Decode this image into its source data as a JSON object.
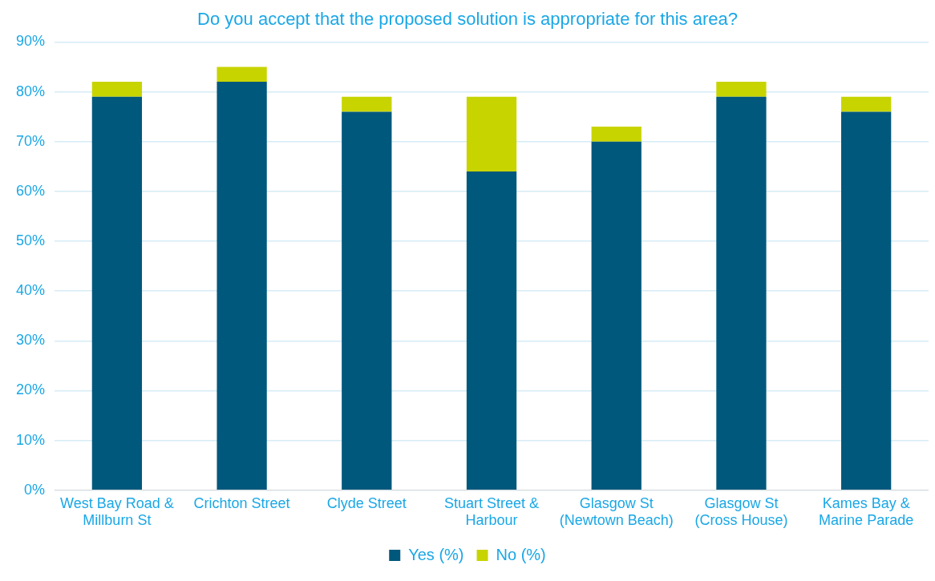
{
  "chart_data": {
    "type": "bar",
    "title": "Do you accept that the proposed solution is appropriate for this area?",
    "categories": [
      "West Bay Road & Millburn St",
      "Crichton Street",
      "Clyde Street",
      "Stuart Street & Harbour",
      "Glasgow St (Newtown Beach)",
      "Glasgow St (Cross House)",
      "Kames Bay & Marine Parade"
    ],
    "stacked": true,
    "series": [
      {
        "name": "Yes (%)",
        "color": "#00587c",
        "values": [
          79,
          82,
          76,
          64,
          70,
          79,
          76
        ]
      },
      {
        "name": "No (%)",
        "color": "#c8d400",
        "values": [
          3,
          3,
          3,
          15,
          3,
          3,
          3
        ]
      }
    ],
    "ylim": [
      0,
      90
    ],
    "yticks": [
      {
        "value": 0,
        "label": "0%"
      },
      {
        "value": 10,
        "label": "10%"
      },
      {
        "value": 20,
        "label": "20%"
      },
      {
        "value": 30,
        "label": "30%"
      },
      {
        "value": 40,
        "label": "40%"
      },
      {
        "value": 50,
        "label": "50%"
      },
      {
        "value": 60,
        "label": "60%"
      },
      {
        "value": 70,
        "label": "70%"
      },
      {
        "value": 80,
        "label": "80%"
      },
      {
        "value": 90,
        "label": "90%"
      }
    ],
    "grid": "y",
    "legend": "bottom"
  }
}
